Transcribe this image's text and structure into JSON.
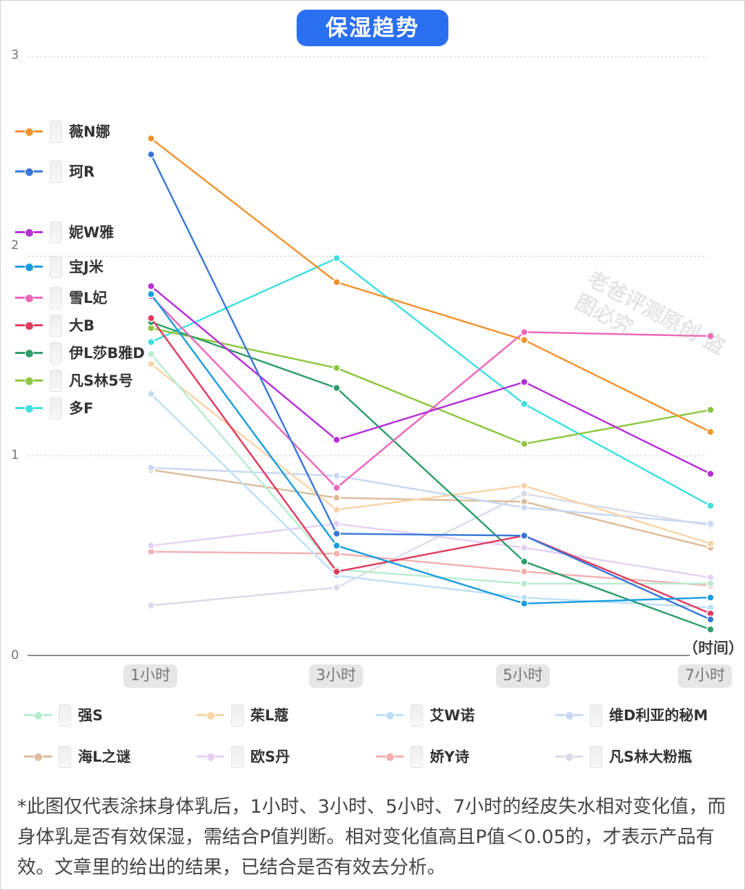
{
  "title": "保湿趋势",
  "watermark": "老爸评测原创 盗图必究",
  "x_unit_label": "（时间）",
  "footnote": "*此图仅代表涂抹身体乳后，1小时、3小时、5小时、7小时的经皮失水相对变化值，而身体乳是否有效保湿，需结合P值判断。相对变化值高且P值＜0.05的，才表示产品有效。文章里的给出的结果，已结合是否有效去分析。",
  "chart_data": {
    "type": "line",
    "title": "保湿趋势",
    "xlabel": "（时间）",
    "ylabel": "",
    "categories": [
      "1小时",
      "3小时",
      "5小时",
      "7小时"
    ],
    "ylim": [
      0,
      3
    ],
    "yticks": [
      "0",
      "1",
      "2",
      "3"
    ],
    "grid": true,
    "legend_placement": "left and bottom",
    "series": [
      {
        "name": "薇N娜",
        "color": "#f0922e",
        "values": [
          2.59,
          1.87,
          1.58,
          1.12
        ]
      },
      {
        "name": "珂R",
        "color": "#3a78d8",
        "values": [
          2.51,
          0.61,
          0.6,
          0.18
        ]
      },
      {
        "name": "妮W雅",
        "color": "#b52fd8",
        "values": [
          1.85,
          1.08,
          1.37,
          0.91
        ]
      },
      {
        "name": "宝J米",
        "color": "#1a9de0",
        "values": [
          1.81,
          0.55,
          0.26,
          0.29
        ]
      },
      {
        "name": "雪L妃",
        "color": "#ee66bb",
        "values": [
          1.8,
          0.84,
          1.62,
          1.6
        ]
      },
      {
        "name": "大B",
        "color": "#e03b5e",
        "values": [
          1.69,
          0.42,
          0.6,
          0.21
        ]
      },
      {
        "name": "伊L莎B雅D",
        "color": "#2e9e6a",
        "values": [
          1.67,
          1.34,
          0.47,
          0.13
        ]
      },
      {
        "name": "凡S林5号",
        "color": "#8cc63f",
        "values": [
          1.64,
          1.44,
          1.06,
          1.23
        ]
      },
      {
        "name": "多F",
        "color": "#3de0e0",
        "values": [
          1.57,
          1.99,
          1.26,
          0.75
        ]
      },
      {
        "name": "强S",
        "color": "#b8ecd0",
        "values": [
          1.51,
          0.43,
          0.36,
          0.36
        ]
      },
      {
        "name": "茱L蔻",
        "color": "#f8d4a8",
        "values": [
          1.46,
          0.73,
          0.85,
          0.56
        ]
      },
      {
        "name": "艾W诺",
        "color": "#bde0f8",
        "values": [
          1.31,
          0.4,
          0.29,
          0.24
        ]
      },
      {
        "name": "维D利亚的秘M",
        "color": "#c8d8f4",
        "values": [
          0.94,
          0.9,
          0.74,
          0.66
        ]
      },
      {
        "name": "海L之谜",
        "color": "#dcbc9c",
        "values": [
          0.93,
          0.79,
          0.77,
          0.54
        ]
      },
      {
        "name": "欧S丹",
        "color": "#e6d0f4",
        "values": [
          0.55,
          0.66,
          0.54,
          0.39
        ]
      },
      {
        "name": "娇Y诗",
        "color": "#f4b0b0",
        "values": [
          0.52,
          0.51,
          0.42,
          0.35
        ]
      },
      {
        "name": "凡S林大粉瓶",
        "color": "#d8dce6",
        "values": [
          0.25,
          0.34,
          0.81,
          0.65
        ]
      }
    ]
  }
}
